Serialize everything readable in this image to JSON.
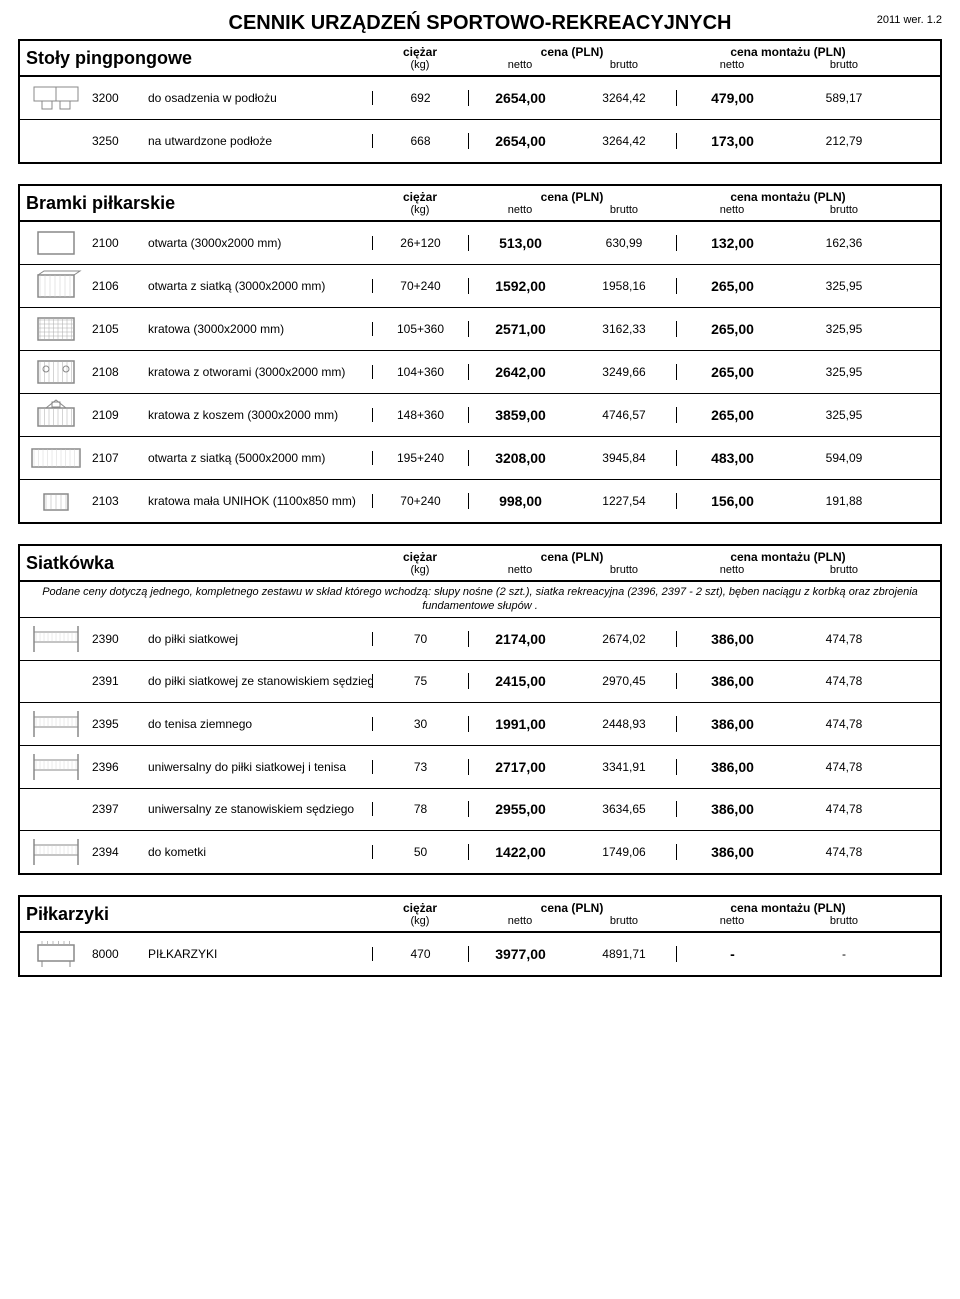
{
  "doc": {
    "title": "CENNIK URZĄDZEŃ SPORTOWO-REKREACYJNYCH",
    "version": "2011 wer. 1.2"
  },
  "header_labels": {
    "weight_top": "ciężar",
    "weight_sub": "(kg)",
    "price_top": "cena (PLN)",
    "install_top": "cena montażu (PLN)",
    "netto": "netto",
    "brutto": "brutto"
  },
  "sections": [
    {
      "id": "pingpong",
      "title": "Stoły pingpongowe",
      "rows": [
        {
          "icon": "table",
          "code": "3200",
          "name": "do osadzenia w podłożu",
          "weight": "692",
          "pn": "2654,00",
          "pb": "3264,42",
          "in": "479,00",
          "ib": "589,17"
        },
        {
          "icon": null,
          "code": "3250",
          "name": "na utwardzone podłoże",
          "weight": "668",
          "pn": "2654,00",
          "pb": "3264,42",
          "in": "173,00",
          "ib": "212,79"
        }
      ]
    },
    {
      "id": "bramki",
      "title": "Bramki piłkarskie",
      "rows": [
        {
          "icon": "goal1",
          "code": "2100",
          "name": "otwarta (3000x2000 mm)",
          "weight": "26+120",
          "pn": "513,00",
          "pb": "630,99",
          "in": "132,00",
          "ib": "162,36"
        },
        {
          "icon": "goal2",
          "code": "2106",
          "name": "otwarta z siatką (3000x2000 mm)",
          "weight": "70+240",
          "pn": "1592,00",
          "pb": "1958,16",
          "in": "265,00",
          "ib": "325,95"
        },
        {
          "icon": "goal3",
          "code": "2105",
          "name": "kratowa (3000x2000 mm)",
          "weight": "105+360",
          "pn": "2571,00",
          "pb": "3162,33",
          "in": "265,00",
          "ib": "325,95"
        },
        {
          "icon": "goal4",
          "code": "2108",
          "name": "kratowa z otworami (3000x2000 mm)",
          "weight": "104+360",
          "pn": "2642,00",
          "pb": "3249,66",
          "in": "265,00",
          "ib": "325,95"
        },
        {
          "icon": "goal5",
          "code": "2109",
          "name": "kratowa z koszem (3000x2000 mm)",
          "weight": "148+360",
          "pn": "3859,00",
          "pb": "4746,57",
          "in": "265,00",
          "ib": "325,95"
        },
        {
          "icon": "goal6",
          "code": "2107",
          "name": "otwarta z siatką (5000x2000 mm)",
          "weight": "195+240",
          "pn": "3208,00",
          "pb": "3945,84",
          "in": "483,00",
          "ib": "594,09"
        },
        {
          "icon": "goal7",
          "code": "2103",
          "name": "kratowa mała UNIHOK (1100x850 mm)",
          "weight": "70+240",
          "pn": "998,00",
          "pb": "1227,54",
          "in": "156,00",
          "ib": "191,88"
        }
      ]
    },
    {
      "id": "siatkowka",
      "title": "Siatkówka",
      "note": "Podane ceny dotyczą jednego, kompletnego zestawu w skład którego wchodzą: słupy nośne (2 szt.), siatka rekreacyjna (2396, 2397 - 2 szt), bęben naciągu z korbką oraz zbrojenia fundamentowe słupów .",
      "rows": [
        {
          "icon": "net",
          "code": "2390",
          "name": "do piłki siatkowej",
          "weight": "70",
          "pn": "2174,00",
          "pb": "2674,02",
          "in": "386,00",
          "ib": "474,78"
        },
        {
          "icon": null,
          "code": "2391",
          "name": "do piłki siatkowej ze stanowiskiem sędziego",
          "weight": "75",
          "pn": "2415,00",
          "pb": "2970,45",
          "in": "386,00",
          "ib": "474,78"
        },
        {
          "icon": "net",
          "code": "2395",
          "name": "do tenisa ziemnego",
          "weight": "30",
          "pn": "1991,00",
          "pb": "2448,93",
          "in": "386,00",
          "ib": "474,78"
        },
        {
          "icon": "net",
          "code": "2396",
          "name": "uniwersalny do piłki siatkowej i tenisa",
          "weight": "73",
          "pn": "2717,00",
          "pb": "3341,91",
          "in": "386,00",
          "ib": "474,78"
        },
        {
          "icon": null,
          "code": "2397",
          "name": "uniwersalny ze stanowiskiem sędziego",
          "weight": "78",
          "pn": "2955,00",
          "pb": "3634,65",
          "in": "386,00",
          "ib": "474,78"
        },
        {
          "icon": "net",
          "code": "2394",
          "name": "do kometki",
          "weight": "50",
          "pn": "1422,00",
          "pb": "1749,06",
          "in": "386,00",
          "ib": "474,78"
        }
      ]
    },
    {
      "id": "pilkarzyki",
      "title": "Piłkarzyki",
      "rows": [
        {
          "icon": "foos",
          "code": "8000",
          "name": "PIŁKARZYKI",
          "weight": "470",
          "pn": "3977,00",
          "pb": "4891,71",
          "in": "-",
          "ib": "-"
        }
      ]
    }
  ]
}
